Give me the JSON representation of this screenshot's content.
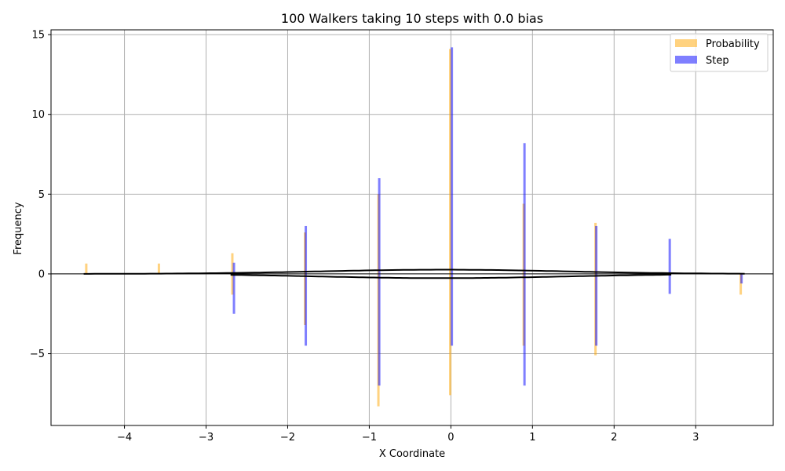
{
  "chart_data": {
    "type": "bar",
    "title": "100 Walkers taking 10 steps with 0.0 bias",
    "xlabel": "X Coordinate",
    "ylabel": "Frequency",
    "xlim": [
      -4.9,
      3.95
    ],
    "ylim": [
      -9.5,
      15.3
    ],
    "grid": true,
    "legend_position": "top-right",
    "x_ticks": [
      -4,
      -3,
      -2,
      -1,
      0,
      1,
      2,
      3
    ],
    "y_ticks": [
      -5,
      0,
      5,
      10,
      15
    ],
    "x_tick_labels": [
      "−4",
      "−3",
      "−2",
      "−1",
      "0",
      "1",
      "2",
      "3"
    ],
    "y_tick_labels": [
      "−5",
      "0",
      "5",
      "10",
      "15"
    ],
    "bar_width": 0.025,
    "series": [
      {
        "name": "Probability",
        "color": "#ffa500",
        "opacity": 0.5,
        "bars": [
          {
            "x": -4.47,
            "top": 0.65,
            "bottom": 0.0
          },
          {
            "x": -3.58,
            "top": 0.65,
            "bottom": 0.0
          },
          {
            "x": -2.68,
            "top": 1.3,
            "bottom": -1.3
          },
          {
            "x": -1.79,
            "top": 2.6,
            "bottom": -3.2
          },
          {
            "x": -0.89,
            "top": 5.0,
            "bottom": -8.3
          },
          {
            "x": -0.01,
            "top": 14.1,
            "bottom": -7.6
          },
          {
            "x": 0.89,
            "top": 4.4,
            "bottom": -4.5
          },
          {
            "x": 1.77,
            "top": 3.2,
            "bottom": -5.1
          },
          {
            "x": 2.67,
            "top": 0.0,
            "bottom": 0.0
          },
          {
            "x": 3.55,
            "top": 0.0,
            "bottom": -1.3
          }
        ]
      },
      {
        "name": "Step",
        "color": "#0000ff",
        "opacity": 0.5,
        "bars": [
          {
            "x": -2.66,
            "top": 0.7,
            "bottom": -2.5
          },
          {
            "x": -1.78,
            "top": 3.0,
            "bottom": -4.5
          },
          {
            "x": -0.88,
            "top": 6.0,
            "bottom": -7.0
          },
          {
            "x": 0.01,
            "top": 14.2,
            "bottom": -4.5
          },
          {
            "x": 0.9,
            "top": 8.2,
            "bottom": -7.0
          },
          {
            "x": 1.78,
            "top": 3.0,
            "bottom": -4.5
          },
          {
            "x": 2.68,
            "top": 2.2,
            "bottom": -1.25
          },
          {
            "x": 3.56,
            "top": 0.0,
            "bottom": -0.6
          }
        ]
      }
    ],
    "curves": [
      {
        "name": "pdf-upper",
        "color": "#000000",
        "mean": -0.1,
        "sd": 1.5,
        "scale": 1.0,
        "x_range": [
          -4.5,
          3.6
        ]
      },
      {
        "name": "pdf-lower",
        "color": "#000000",
        "mean": -0.1,
        "sd": 1.5,
        "scale": -1.0,
        "x_range": [
          -2.7,
          2.7
        ]
      }
    ]
  }
}
